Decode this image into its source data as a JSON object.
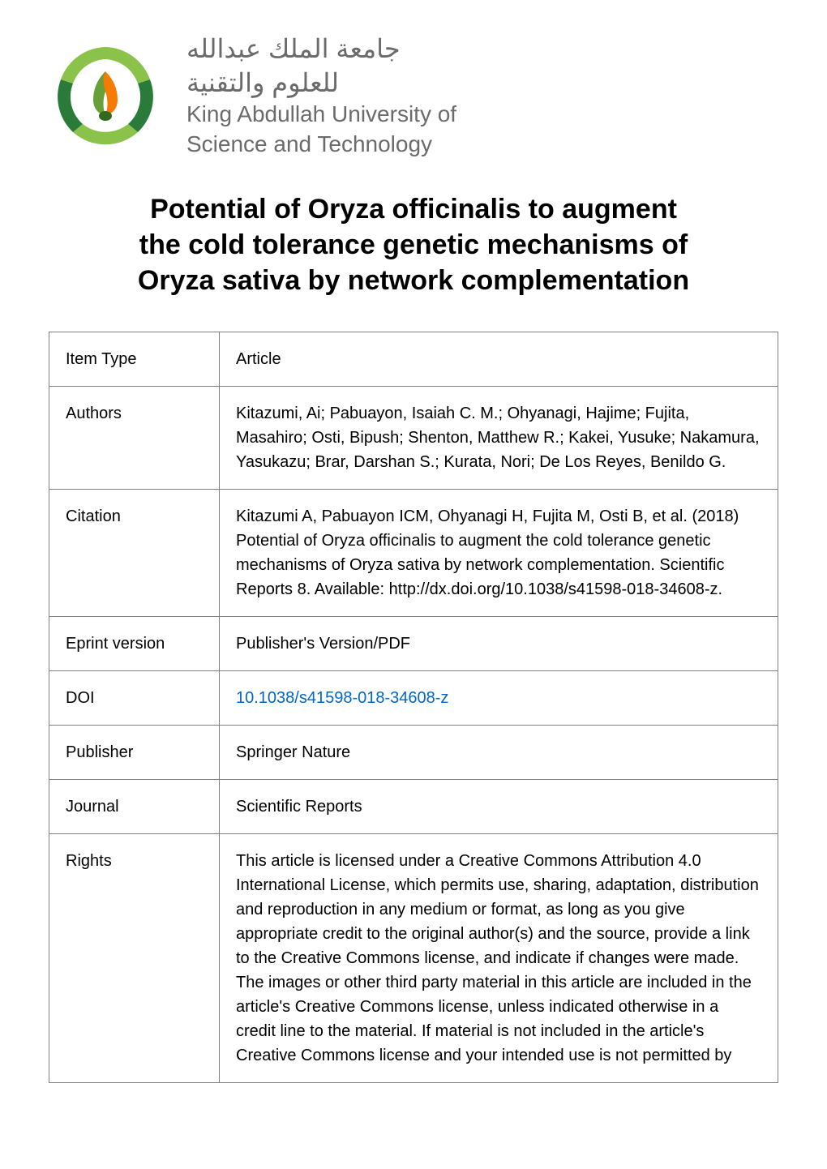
{
  "header": {
    "institution_arabic_line1": "جامعة الملك عبدالله",
    "institution_arabic_line2": "للعلوم والتقنية",
    "institution_english_line1": "King Abdullah University of",
    "institution_english_line2": "Science and Technology",
    "logo_colors": {
      "outer_ring_dark": "#2a7a3a",
      "outer_ring_light": "#8bc34a",
      "leaf_orange": "#f57c00",
      "leaf_green": "#689f38",
      "center_dark": "#33691e"
    }
  },
  "title_line1": "Potential of Oryza officinalis to augment",
  "title_line2": "the cold tolerance genetic mechanisms of",
  "title_line3": "Oryza sativa by network complementation",
  "metadata_rows": [
    {
      "label": "Item Type",
      "value": "Article"
    },
    {
      "label": "Authors",
      "value": "Kitazumi, Ai; Pabuayon, Isaiah C. M.; Ohyanagi, Hajime; Fujita, Masahiro; Osti, Bipush; Shenton, Matthew R.; Kakei, Yusuke; Nakamura, Yasukazu; Brar, Darshan S.; Kurata, Nori; De Los Reyes, Benildo G."
    },
    {
      "label": "Citation",
      "value": "Kitazumi A, Pabuayon ICM, Ohyanagi H, Fujita M, Osti B, et al. (2018) Potential of Oryza officinalis to augment the cold tolerance genetic mechanisms of Oryza sativa by network complementation. Scientific Reports 8. Available: http://dx.doi.org/10.1038/s41598-018-34608-z."
    },
    {
      "label": "Eprint version",
      "value": "Publisher's Version/PDF"
    },
    {
      "label": "DOI",
      "value": "10.1038/s41598-018-34608-z",
      "is_link": true
    },
    {
      "label": "Publisher",
      "value": "Springer Nature"
    },
    {
      "label": "Journal",
      "value": "Scientific Reports"
    },
    {
      "label": "Rights",
      "value": "This article is licensed under a Creative Commons Attribution 4.0 International License, which permits use, sharing, adaptation, distribution and reproduction in any medium or format, as long as you give appropriate credit to the original author(s) and the source, provide a link to the Creative Commons license, and indicate if changes were made. The images or other third party material in this article are included in the article's Creative Commons license, unless indicated otherwise in a credit line to the material. If material is not included in the article's Creative Commons license and your intended use is not permitted by"
    }
  ],
  "styling": {
    "body_bg": "#ffffff",
    "text_color": "#000000",
    "table_border_color": "#808080",
    "institution_text_color": "#6b6b6b",
    "link_color": "#0066cc",
    "title_fontsize": 34,
    "body_fontsize": 20,
    "arabic_fontsize": 32,
    "english_fontsize": 28,
    "label_col_width": 210
  }
}
